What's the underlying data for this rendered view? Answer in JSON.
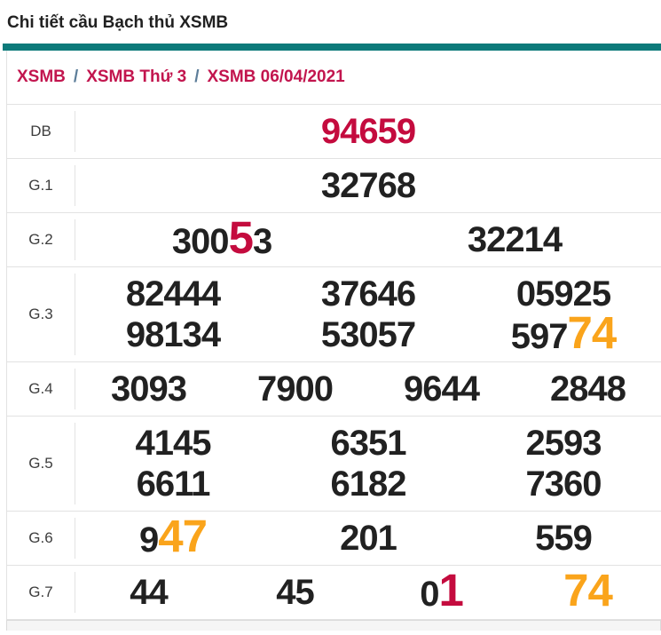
{
  "page": {
    "title": "Chi tiết cầu Bạch thủ XSMB"
  },
  "breadcrumb": {
    "separator": "/",
    "items": [
      "XSMB",
      "XSMB Thứ 3",
      "XSMB 06/04/2021"
    ]
  },
  "colors": {
    "accent_teal": "#0d7a7a",
    "crimson_highlight": "#c40b3e",
    "orange_highlight": "#faa41b",
    "breadcrumb_link": "#c2154e"
  },
  "results_table": {
    "rows": [
      {
        "label": "DB",
        "lines": [
          [
            [
              {
                "t": "94659",
                "c": "crimson"
              }
            ]
          ]
        ]
      },
      {
        "label": "G.1",
        "lines": [
          [
            [
              {
                "t": "32768"
              }
            ]
          ]
        ]
      },
      {
        "label": "G.2",
        "lines": [
          [
            [
              {
                "t": "300"
              },
              {
                "t": "5",
                "c": "crimson",
                "big": true
              },
              {
                "t": "3"
              }
            ],
            [
              {
                "t": "32214"
              }
            ]
          ]
        ]
      },
      {
        "label": "G.3",
        "lines": [
          [
            [
              {
                "t": "82444"
              }
            ],
            [
              {
                "t": "37646"
              }
            ],
            [
              {
                "t": "05925"
              }
            ]
          ],
          [
            [
              {
                "t": "98134"
              }
            ],
            [
              {
                "t": "53057"
              }
            ],
            [
              {
                "t": "597"
              },
              {
                "t": "74",
                "c": "orange",
                "big": true
              }
            ]
          ]
        ]
      },
      {
        "label": "G.4",
        "lines": [
          [
            [
              {
                "t": "3093"
              }
            ],
            [
              {
                "t": "7900"
              }
            ],
            [
              {
                "t": "9644"
              }
            ],
            [
              {
                "t": "2848"
              }
            ]
          ]
        ]
      },
      {
        "label": "G.5",
        "lines": [
          [
            [
              {
                "t": "4145"
              }
            ],
            [
              {
                "t": "6351"
              }
            ],
            [
              {
                "t": "2593"
              }
            ]
          ],
          [
            [
              {
                "t": "6611"
              }
            ],
            [
              {
                "t": "6182"
              }
            ],
            [
              {
                "t": "7360"
              }
            ]
          ]
        ]
      },
      {
        "label": "G.6",
        "lines": [
          [
            [
              {
                "t": "9"
              },
              {
                "t": "47",
                "c": "orange",
                "big": true
              }
            ],
            [
              {
                "t": "201"
              }
            ],
            [
              {
                "t": "559"
              }
            ]
          ]
        ]
      },
      {
        "label": "G.7",
        "lines": [
          [
            [
              {
                "t": "44"
              }
            ],
            [
              {
                "t": "45"
              }
            ],
            [
              {
                "t": "0"
              },
              {
                "t": "1",
                "c": "crimson",
                "big": true
              }
            ],
            [
              {
                "t": "74",
                "c": "orange",
                "big": true
              }
            ]
          ]
        ]
      }
    ]
  }
}
